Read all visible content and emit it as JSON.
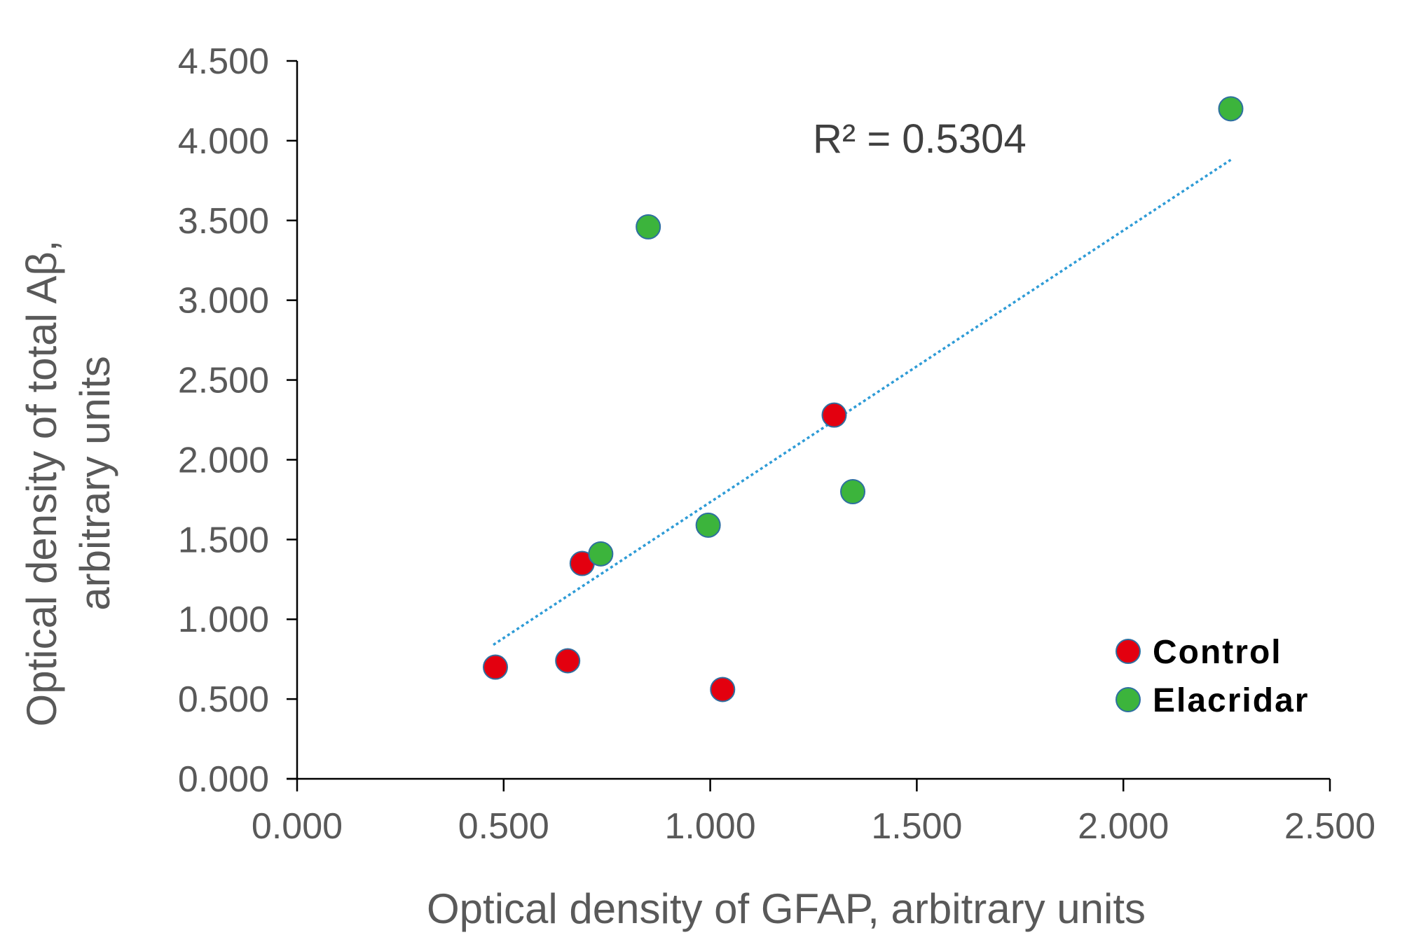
{
  "chart_data": {
    "type": "scatter",
    "title": "",
    "xlabel": "Optical density of GFAP, arbitrary units",
    "ylabel_lines": [
      "Optical density of total Aβ,",
      "arbitrary units"
    ],
    "xlim": [
      0,
      2.5
    ],
    "ylim": [
      0,
      4.5
    ],
    "x_ticks": [
      0,
      0.5,
      1.0,
      1.5,
      2.0,
      2.5
    ],
    "x_tick_labels": [
      "0.000",
      "0.500",
      "1.000",
      "1.500",
      "2.000",
      "2.500"
    ],
    "y_ticks": [
      0,
      0.5,
      1.0,
      1.5,
      2.0,
      2.5,
      3.0,
      3.5,
      4.0,
      4.5
    ],
    "y_tick_labels": [
      "0.000",
      "0.500",
      "1.000",
      "1.500",
      "2.000",
      "2.500",
      "3.000",
      "3.500",
      "4.000",
      "4.500"
    ],
    "grid": false,
    "legend_position": "bottom-right",
    "series": [
      {
        "name": "Control",
        "color": "#e3000f",
        "points": [
          {
            "x": 0.48,
            "y": 0.7
          },
          {
            "x": 0.655,
            "y": 0.74
          },
          {
            "x": 0.69,
            "y": 1.35
          },
          {
            "x": 1.03,
            "y": 0.56
          },
          {
            "x": 1.3,
            "y": 2.28
          }
        ]
      },
      {
        "name": "Elacridar",
        "color": "#3cb43c",
        "points": [
          {
            "x": 0.735,
            "y": 1.41
          },
          {
            "x": 0.85,
            "y": 3.46
          },
          {
            "x": 0.995,
            "y": 1.59
          },
          {
            "x": 1.345,
            "y": 1.8
          },
          {
            "x": 2.26,
            "y": 4.2
          }
        ]
      }
    ],
    "trendline": {
      "style": "dotted",
      "color": "#2e9bd6",
      "x_start": 0.475,
      "x_end": 2.26,
      "y_start": 0.84,
      "y_end": 3.88
    },
    "annotation": "R² = 0.5304"
  }
}
